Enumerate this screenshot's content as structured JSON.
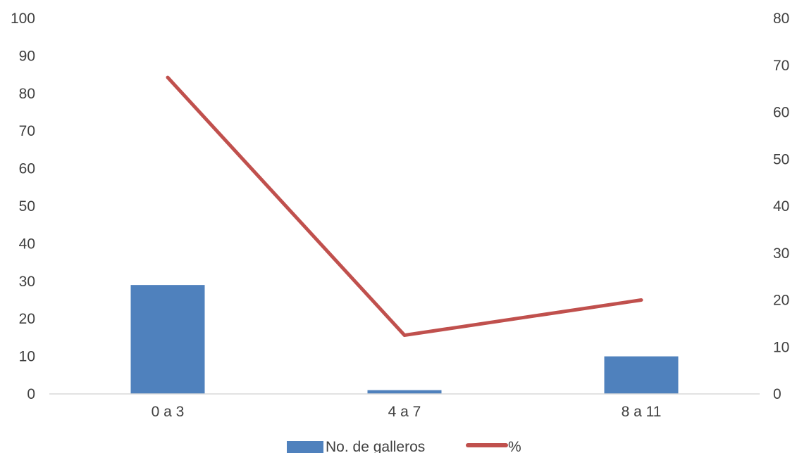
{
  "chart_data": {
    "type": "bar",
    "categories": [
      "0 a 3",
      "4 a 7",
      "8 a 11"
    ],
    "series": [
      {
        "name": "No. de galleros",
        "type": "bar",
        "axis": "left",
        "values": [
          29,
          1,
          10
        ],
        "color": "#4F81BD"
      },
      {
        "name": "%",
        "type": "line",
        "axis": "right",
        "values": [
          67.4,
          12.5,
          20.0
        ],
        "color": "#C0504D"
      }
    ],
    "y_left": {
      "min": 0,
      "max": 100,
      "step": 10
    },
    "y_right": {
      "min": 0,
      "max": 80,
      "step": 10
    },
    "axis_color": "#D9D9D9",
    "legend_position": "bottom",
    "grid": false
  }
}
